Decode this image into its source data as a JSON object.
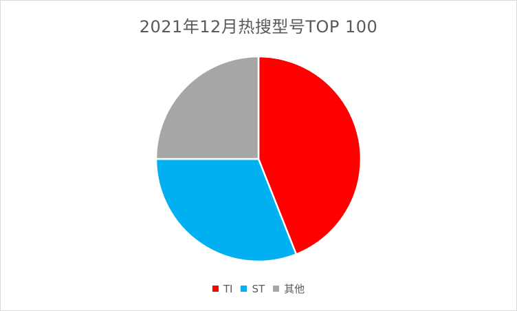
{
  "chart_data": {
    "type": "pie",
    "title": "2021年12月热搜型号TOP 100",
    "categories": [
      "TI",
      "ST",
      "其他"
    ],
    "values": [
      44,
      31,
      25
    ],
    "colors": [
      "#ff0000",
      "#00b0f0",
      "#a6a6a6"
    ],
    "legend": "bottom"
  }
}
